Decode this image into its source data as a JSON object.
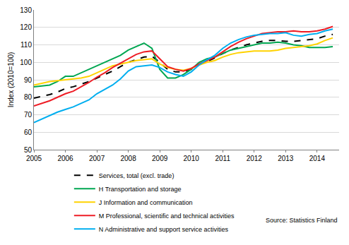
{
  "chart_data": {
    "type": "line",
    "y_label": "Index (2010=100)",
    "source": "Source: Statistics Finland",
    "x": [
      2005,
      2005.25,
      2005.5,
      2005.75,
      2006,
      2006.25,
      2006.5,
      2006.75,
      2007,
      2007.25,
      2007.5,
      2007.75,
      2008,
      2008.25,
      2008.5,
      2008.75,
      2009,
      2009.25,
      2009.5,
      2009.75,
      2010,
      2010.25,
      2010.5,
      2010.75,
      2011,
      2011.25,
      2011.5,
      2011.75,
      2012,
      2012.25,
      2012.5,
      2012.75,
      2013,
      2013.25,
      2013.5,
      2013.75,
      2014,
      2014.25,
      2014.5
    ],
    "xlim": [
      2005,
      2014.7
    ],
    "xticks": [
      2005,
      2006,
      2007,
      2008,
      2009,
      2010,
      2011,
      2012,
      2013,
      2014
    ],
    "ylim": [
      50,
      130
    ],
    "yticks": [
      50,
      60,
      70,
      80,
      90,
      100,
      110,
      120,
      130
    ],
    "grid": true,
    "legend": "bottom",
    "series": [
      {
        "name": "Services, total (excl. trade)",
        "color": "#000000",
        "line_style": "dashed",
        "values": [
          79.5,
          80.5,
          81.5,
          83,
          85,
          86,
          87.5,
          89,
          91,
          93,
          95,
          97.5,
          100,
          101.5,
          103,
          103.5,
          100,
          96,
          94.5,
          94.5,
          96,
          98.5,
          100.5,
          102.5,
          105,
          107,
          108.5,
          110,
          111,
          112,
          112.5,
          112.5,
          112,
          112,
          112.5,
          113,
          113.5,
          115,
          116
        ]
      },
      {
        "name": "H Transportation and storage",
        "color": "#00a651",
        "line_style": "solid",
        "values": [
          86,
          86.5,
          87,
          89,
          92,
          92,
          94,
          96,
          98,
          100,
          102,
          104,
          107,
          109,
          111,
          108,
          96,
          91,
          91,
          93,
          96,
          100,
          102,
          103,
          105,
          107,
          108,
          109,
          110,
          111,
          111,
          111.5,
          111,
          110,
          109.5,
          108.5,
          108.5,
          108.5,
          109
        ]
      },
      {
        "name": "J Information and communication",
        "color": "#ffd200",
        "line_style": "solid",
        "values": [
          87,
          88,
          89,
          89.5,
          90,
          90.5,
          91,
          92,
          94,
          96,
          98,
          99,
          100,
          101,
          101.5,
          102,
          99,
          97,
          96,
          95.5,
          96.5,
          98.5,
          100,
          101,
          103,
          104.5,
          105.5,
          106,
          106.5,
          106.5,
          106.5,
          107,
          108,
          108.5,
          109,
          109.5,
          110.5,
          112.5,
          114
        ]
      },
      {
        "name": "M Professional, scientific and technical activities",
        "color": "#ee1c25",
        "line_style": "solid",
        "values": [
          75,
          76.5,
          78,
          80,
          82,
          83.5,
          86,
          88.5,
          91.5,
          94,
          97,
          99.5,
          102,
          104.5,
          106,
          106.5,
          102,
          97.5,
          96,
          95,
          96.5,
          99,
          101,
          103,
          106,
          109,
          111.5,
          113.5,
          115,
          116.5,
          117,
          117.5,
          117.5,
          118,
          117.5,
          117.5,
          118,
          119,
          120.5
        ]
      },
      {
        "name": "N Administrative and support service activities",
        "color": "#00aeef",
        "line_style": "solid",
        "values": [
          65.5,
          67.5,
          69.5,
          71.5,
          73,
          74.5,
          76.5,
          78.5,
          82,
          84.5,
          87,
          90.5,
          95,
          97.5,
          98,
          98.5,
          97,
          94.5,
          93,
          92,
          94.5,
          98.5,
          101.5,
          104,
          108,
          111,
          113,
          114.5,
          115.5,
          116,
          116.5,
          116.5,
          117,
          115.5,
          115,
          116,
          116.5,
          118,
          119
        ]
      }
    ]
  }
}
